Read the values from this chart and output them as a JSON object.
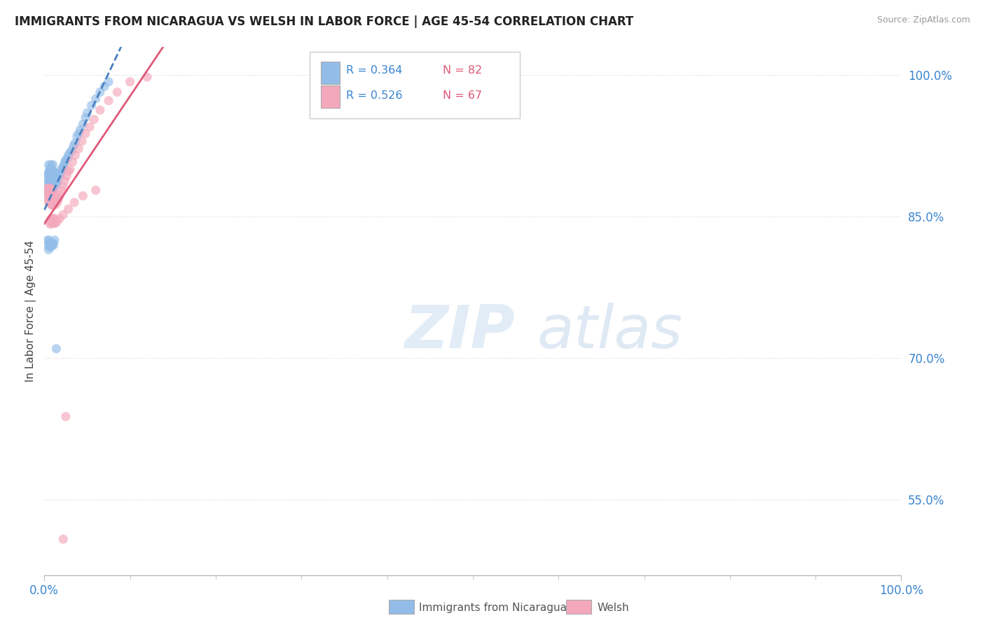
{
  "title": "IMMIGRANTS FROM NICARAGUA VS WELSH IN LABOR FORCE | AGE 45-54 CORRELATION CHART",
  "source": "Source: ZipAtlas.com",
  "ylabel": "In Labor Force | Age 45-54",
  "xlim": [
    0.0,
    1.0
  ],
  "ylim": [
    0.47,
    1.03
  ],
  "x_ticks": [
    0.0,
    1.0
  ],
  "x_tick_labels": [
    "0.0%",
    "100.0%"
  ],
  "y_tick_positions": [
    0.55,
    0.7,
    0.85,
    1.0
  ],
  "y_tick_labels": [
    "55.0%",
    "70.0%",
    "85.0%",
    "100.0%"
  ],
  "legend_r1": "R = 0.364",
  "legend_n1": "N = 82",
  "legend_r2": "R = 0.526",
  "legend_n2": "N = 67",
  "legend_label1": "Immigrants from Nicaragua",
  "legend_label2": "Welsh",
  "color_nicaragua": "#92bde8",
  "color_welsh": "#f4a8bb",
  "line_color_nicaragua": "#4a7fc0",
  "line_color_welsh": "#e05878",
  "scatter_alpha": 0.65,
  "background_color": "#ffffff",
  "grid_color": "#d8d8d8",
  "title_color": "#222222",
  "axis_label_color": "#444444",
  "tick_label_color": "#3a85d0",
  "nicaragua_x": [
    0.003,
    0.003,
    0.004,
    0.004,
    0.005,
    0.005,
    0.005,
    0.005,
    0.006,
    0.006,
    0.006,
    0.006,
    0.007,
    0.007,
    0.007,
    0.007,
    0.008,
    0.008,
    0.008,
    0.008,
    0.008,
    0.009,
    0.009,
    0.009,
    0.009,
    0.01,
    0.01,
    0.01,
    0.01,
    0.01,
    0.011,
    0.011,
    0.011,
    0.012,
    0.012,
    0.012,
    0.013,
    0.013,
    0.014,
    0.014,
    0.015,
    0.015,
    0.016,
    0.016,
    0.017,
    0.018,
    0.019,
    0.02,
    0.021,
    0.022,
    0.023,
    0.024,
    0.025,
    0.027,
    0.028,
    0.03,
    0.032,
    0.034,
    0.036,
    0.038,
    0.04,
    0.042,
    0.045,
    0.048,
    0.05,
    0.055,
    0.06,
    0.065,
    0.07,
    0.075,
    0.003,
    0.004,
    0.005,
    0.005,
    0.006,
    0.007,
    0.008,
    0.009,
    0.01,
    0.011,
    0.012,
    0.014
  ],
  "nicaragua_y": [
    0.885,
    0.895,
    0.88,
    0.89,
    0.875,
    0.885,
    0.895,
    0.905,
    0.88,
    0.888,
    0.895,
    0.9,
    0.878,
    0.885,
    0.893,
    0.9,
    0.875,
    0.882,
    0.89,
    0.897,
    0.905,
    0.878,
    0.885,
    0.893,
    0.9,
    0.878,
    0.885,
    0.892,
    0.898,
    0.905,
    0.88,
    0.887,
    0.894,
    0.882,
    0.889,
    0.897,
    0.885,
    0.893,
    0.887,
    0.895,
    0.885,
    0.893,
    0.888,
    0.896,
    0.892,
    0.895,
    0.895,
    0.9,
    0.9,
    0.903,
    0.905,
    0.908,
    0.91,
    0.912,
    0.915,
    0.918,
    0.92,
    0.925,
    0.928,
    0.935,
    0.938,
    0.942,
    0.948,
    0.955,
    0.96,
    0.968,
    0.975,
    0.982,
    0.988,
    0.993,
    0.82,
    0.825,
    0.815,
    0.825,
    0.818,
    0.822,
    0.818,
    0.82,
    0.822,
    0.82,
    0.825,
    0.71
  ],
  "welsh_x": [
    0.003,
    0.003,
    0.004,
    0.004,
    0.005,
    0.005,
    0.005,
    0.006,
    0.006,
    0.006,
    0.007,
    0.007,
    0.007,
    0.008,
    0.008,
    0.008,
    0.009,
    0.009,
    0.01,
    0.01,
    0.01,
    0.011,
    0.011,
    0.012,
    0.012,
    0.013,
    0.013,
    0.014,
    0.015,
    0.016,
    0.017,
    0.018,
    0.02,
    0.022,
    0.024,
    0.026,
    0.028,
    0.03,
    0.033,
    0.036,
    0.04,
    0.044,
    0.048,
    0.053,
    0.058,
    0.065,
    0.075,
    0.085,
    0.1,
    0.12,
    0.006,
    0.007,
    0.008,
    0.009,
    0.01,
    0.011,
    0.012,
    0.013,
    0.015,
    0.018,
    0.022,
    0.028,
    0.035,
    0.045,
    0.06,
    0.025,
    0.022
  ],
  "welsh_y": [
    0.87,
    0.878,
    0.872,
    0.88,
    0.865,
    0.873,
    0.88,
    0.865,
    0.873,
    0.88,
    0.865,
    0.873,
    0.88,
    0.863,
    0.871,
    0.878,
    0.862,
    0.87,
    0.863,
    0.871,
    0.878,
    0.862,
    0.87,
    0.865,
    0.872,
    0.863,
    0.87,
    0.868,
    0.865,
    0.868,
    0.87,
    0.873,
    0.878,
    0.882,
    0.888,
    0.893,
    0.898,
    0.9,
    0.908,
    0.915,
    0.922,
    0.93,
    0.938,
    0.945,
    0.953,
    0.963,
    0.973,
    0.982,
    0.993,
    0.998,
    0.845,
    0.842,
    0.848,
    0.843,
    0.848,
    0.843,
    0.848,
    0.843,
    0.845,
    0.848,
    0.852,
    0.858,
    0.865,
    0.872,
    0.878,
    0.638,
    0.508
  ]
}
